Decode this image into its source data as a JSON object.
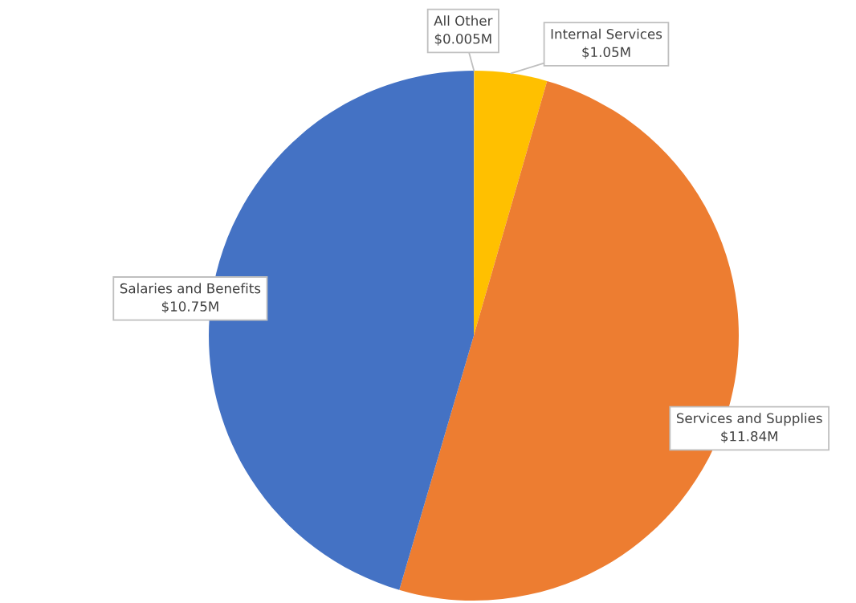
{
  "chart_data": {
    "type": "pie",
    "categories": [
      "All Other",
      "Internal Services",
      "Services and Supplies",
      "Salaries and Benefits"
    ],
    "values": [
      0.005,
      1.05,
      11.84,
      10.75
    ],
    "value_labels": [
      "$0.005M",
      "$1.05M",
      "$11.84M",
      "$10.75M"
    ],
    "colors": [
      "#a5a5a5",
      "#ffc000",
      "#ed7d31",
      "#4472c4"
    ]
  }
}
